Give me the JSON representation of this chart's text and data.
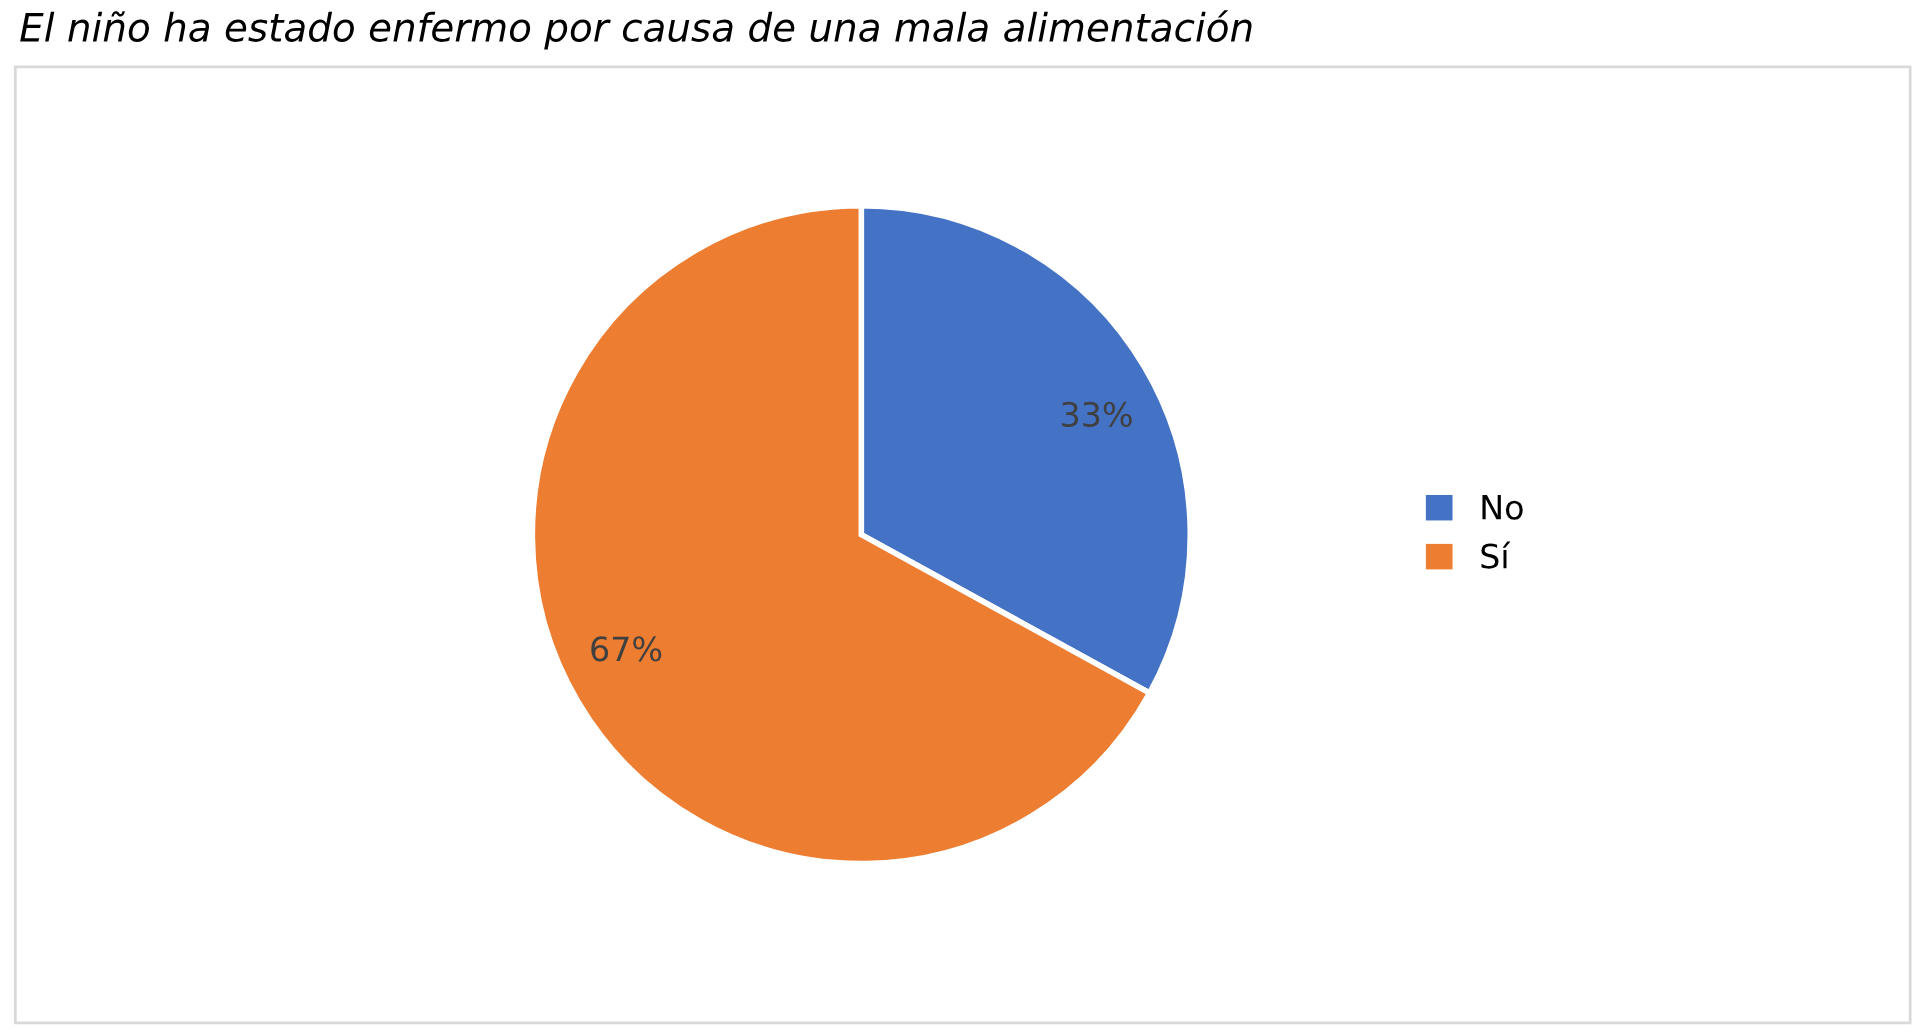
{
  "chart_data": {
    "type": "pie",
    "title": "El niño ha estado enfermo por causa de una mala alimentación",
    "categories": [
      "No",
      "Sí"
    ],
    "values": [
      33,
      67
    ],
    "colors": [
      "#4472c4",
      "#ed7d31"
    ],
    "value_labels": [
      "33%",
      "67%"
    ],
    "legend": "right"
  }
}
